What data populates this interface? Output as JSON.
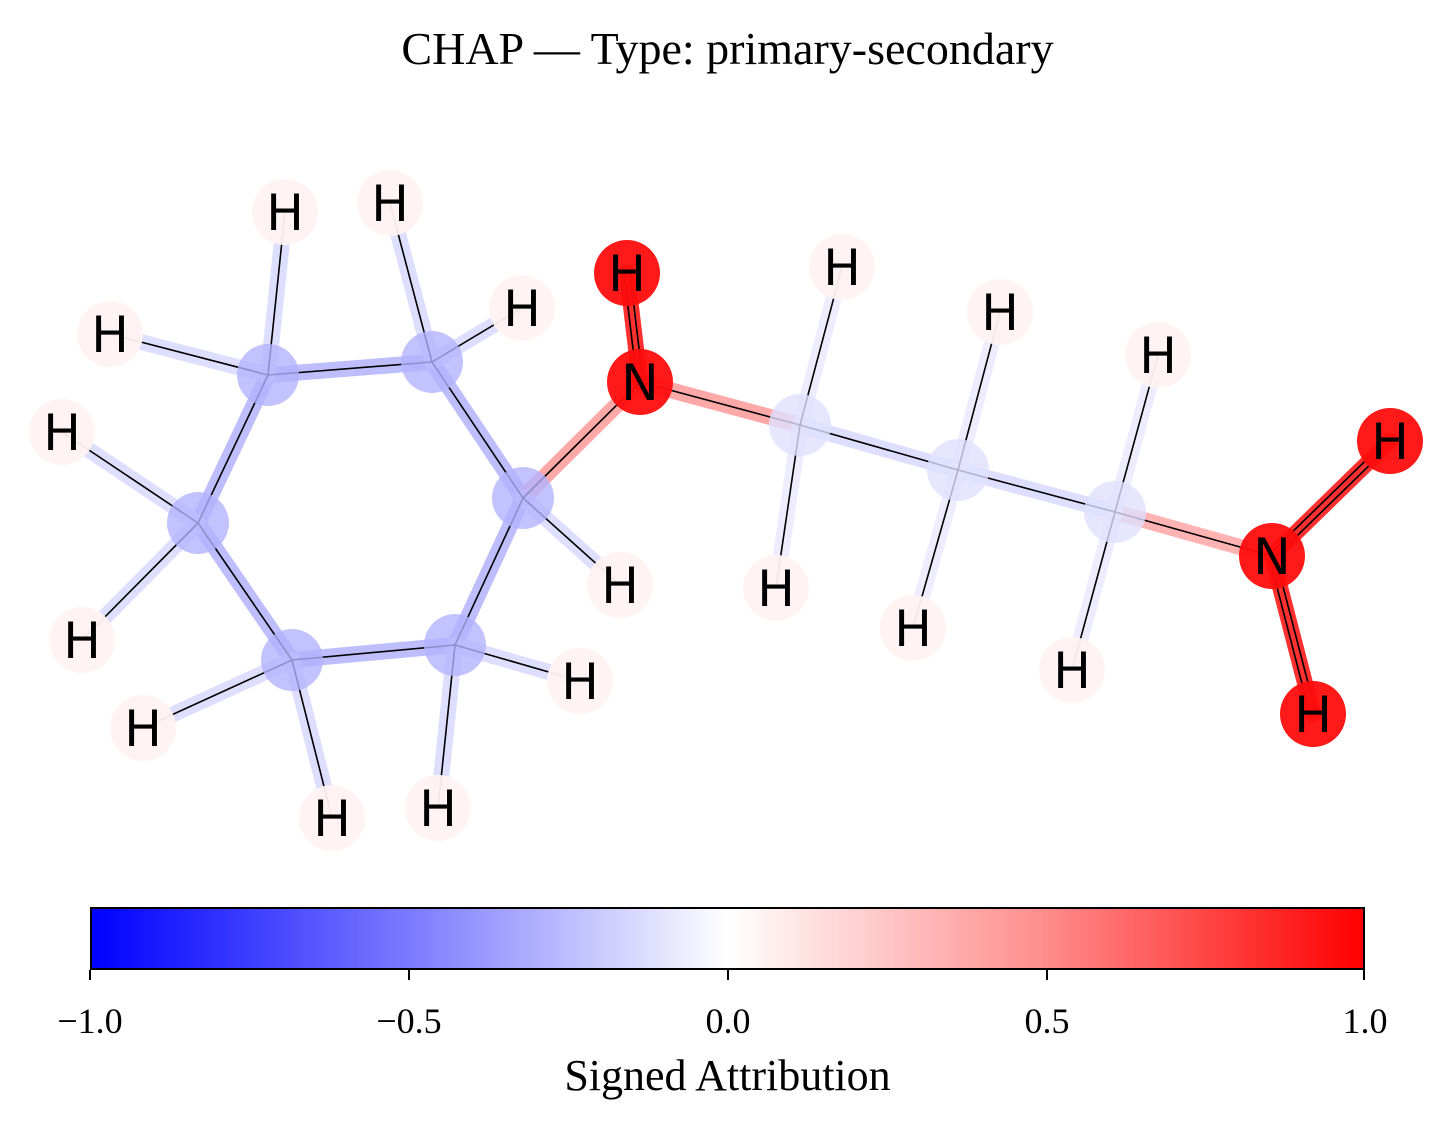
{
  "title": "CHAP — Type: primary-secondary",
  "colorbar": {
    "label": "Signed Attribution",
    "ticks": [
      "−1.0",
      "−0.5",
      "0.0",
      "0.5",
      "1.0"
    ],
    "range": [
      -1.0,
      1.0
    ],
    "colors": {
      "negative": "#0000ff",
      "neutral": "#ffffff",
      "positive": "#ff0000"
    }
  },
  "molecule": {
    "atoms": [
      {
        "id": "C1",
        "symbol": "",
        "attribution": -0.3
      },
      {
        "id": "C2",
        "symbol": "",
        "attribution": -0.3
      },
      {
        "id": "C3",
        "symbol": "",
        "attribution": -0.3
      },
      {
        "id": "C4",
        "symbol": "",
        "attribution": -0.3
      },
      {
        "id": "C5",
        "symbol": "",
        "attribution": -0.3
      },
      {
        "id": "C6",
        "symbol": "",
        "attribution": -0.3
      },
      {
        "id": "N1",
        "symbol": "N",
        "attribution": 0.95
      },
      {
        "id": "C7",
        "symbol": "",
        "attribution": -0.12
      },
      {
        "id": "C8",
        "symbol": "",
        "attribution": -0.12
      },
      {
        "id": "C9",
        "symbol": "",
        "attribution": -0.12
      },
      {
        "id": "N2",
        "symbol": "N",
        "attribution": 0.95
      },
      {
        "id": "H1",
        "symbol": "H",
        "attribution": 0.05
      },
      {
        "id": "H2",
        "symbol": "H",
        "attribution": 0.05
      },
      {
        "id": "H3",
        "symbol": "H",
        "attribution": 0.05
      },
      {
        "id": "H4",
        "symbol": "H",
        "attribution": 0.05
      },
      {
        "id": "H5",
        "symbol": "H",
        "attribution": 0.05
      },
      {
        "id": "H6",
        "symbol": "H",
        "attribution": 0.05
      },
      {
        "id": "H7",
        "symbol": "H",
        "attribution": 0.05
      },
      {
        "id": "H8",
        "symbol": "H",
        "attribution": 0.05
      },
      {
        "id": "H9",
        "symbol": "H",
        "attribution": 0.05
      },
      {
        "id": "H10",
        "symbol": "H",
        "attribution": 0.05
      },
      {
        "id": "H11",
        "symbol": "H",
        "attribution": 0.05
      },
      {
        "id": "H12",
        "symbol": "H",
        "attribution": 0.95
      },
      {
        "id": "H13",
        "symbol": "H",
        "attribution": 0.05
      },
      {
        "id": "H14",
        "symbol": "H",
        "attribution": 0.05
      },
      {
        "id": "H15",
        "symbol": "H",
        "attribution": 0.05
      },
      {
        "id": "H16",
        "symbol": "H",
        "attribution": 0.05
      },
      {
        "id": "H17",
        "symbol": "H",
        "attribution": 0.05
      },
      {
        "id": "H18",
        "symbol": "H",
        "attribution": 0.05
      },
      {
        "id": "H19",
        "symbol": "H",
        "attribution": 0.95
      },
      {
        "id": "H20",
        "symbol": "H",
        "attribution": 0.95
      }
    ],
    "bonds": [
      {
        "a": "C1",
        "b": "C2",
        "attribution": -0.3
      },
      {
        "a": "C2",
        "b": "C3",
        "attribution": -0.3
      },
      {
        "a": "C3",
        "b": "C4",
        "attribution": -0.3
      },
      {
        "a": "C4",
        "b": "C5",
        "attribution": -0.3
      },
      {
        "a": "C5",
        "b": "C6",
        "attribution": -0.3
      },
      {
        "a": "C6",
        "b": "C1",
        "attribution": -0.3
      },
      {
        "a": "C3",
        "b": "N1",
        "attribution": 0.4
      },
      {
        "a": "N1",
        "b": "C7",
        "attribution": 0.4
      },
      {
        "a": "C7",
        "b": "C8",
        "attribution": -0.15
      },
      {
        "a": "C8",
        "b": "C9",
        "attribution": -0.15
      },
      {
        "a": "C9",
        "b": "N2",
        "attribution": 0.35
      },
      {
        "a": "N1",
        "b": "H12",
        "attribution": 0.95
      },
      {
        "a": "N2",
        "b": "H19",
        "attribution": 0.95
      },
      {
        "a": "N2",
        "b": "H20",
        "attribution": 0.95
      },
      {
        "a": "C1",
        "b": "H1",
        "attribution": -0.15
      },
      {
        "a": "C1",
        "b": "H2",
        "attribution": -0.15
      },
      {
        "a": "C2",
        "b": "H3",
        "attribution": -0.15
      },
      {
        "a": "C2",
        "b": "H4",
        "attribution": -0.15
      },
      {
        "a": "C3",
        "b": "H5",
        "attribution": -0.15
      },
      {
        "a": "C4",
        "b": "H6",
        "attribution": -0.15
      },
      {
        "a": "C4",
        "b": "H7",
        "attribution": -0.15
      },
      {
        "a": "C5",
        "b": "H8",
        "attribution": -0.15
      },
      {
        "a": "C5",
        "b": "H9",
        "attribution": -0.15
      },
      {
        "a": "C6",
        "b": "H10",
        "attribution": -0.15
      },
      {
        "a": "C6",
        "b": "H11",
        "attribution": -0.15
      },
      {
        "a": "C7",
        "b": "H13",
        "attribution": -0.08
      },
      {
        "a": "C7",
        "b": "H14",
        "attribution": -0.08
      },
      {
        "a": "C8",
        "b": "H15",
        "attribution": -0.08
      },
      {
        "a": "C8",
        "b": "H16",
        "attribution": -0.08
      },
      {
        "a": "C9",
        "b": "H17",
        "attribution": -0.08
      },
      {
        "a": "C9",
        "b": "H18",
        "attribution": -0.08
      }
    ]
  }
}
